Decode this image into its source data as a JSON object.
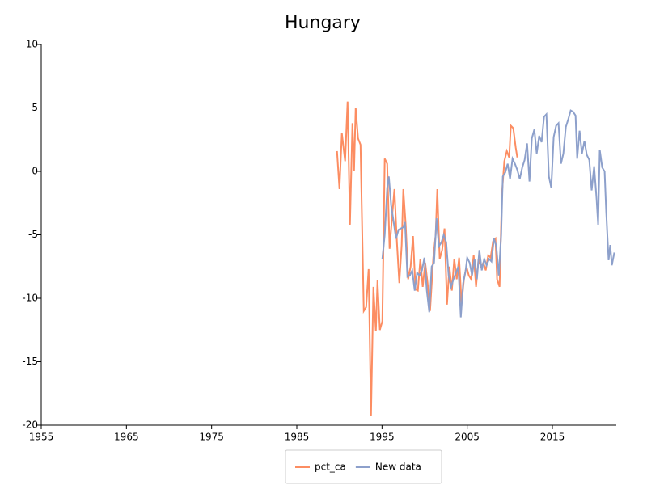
{
  "chart_data": {
    "type": "line",
    "title": "Hungary",
    "xlim": [
      1955,
      2022.5
    ],
    "xticks": [
      1955,
      1965,
      1975,
      1985,
      1995,
      2005,
      2015
    ],
    "ylim": [
      -20,
      10
    ],
    "yticks": [
      -20,
      -15,
      -10,
      -5,
      0,
      5,
      10
    ],
    "grid": false,
    "legend": "bottom",
    "series": [
      {
        "name": "pct_ca",
        "color": "#fc8d62",
        "x": [
          1989.72,
          1990.01,
          1990.29,
          1990.67,
          1990.96,
          1991.24,
          1991.53,
          1991.72,
          1991.91,
          1992.19,
          1992.48,
          1992.86,
          1993.14,
          1993.43,
          1993.71,
          1993.99,
          1994.28,
          1994.47,
          1994.75,
          1995.04,
          1995.32,
          1995.61,
          1995.89,
          1996.18,
          1996.46,
          1996.75,
          1997.03,
          1997.31,
          1997.5,
          1997.79,
          1998.07,
          1998.36,
          1998.64,
          1998.93,
          1999.21,
          1999.5,
          1999.78,
          2000.07,
          2000.35,
          2000.64,
          2001.02,
          2001.3,
          2001.49,
          2001.77,
          2002.06,
          2002.34,
          2002.63,
          2002.91,
          2003.2,
          2003.48,
          2003.77,
          2004.05,
          2004.34,
          2004.62,
          2004.91,
          2005.19,
          2005.47,
          2005.76,
          2006.04,
          2006.33,
          2006.61,
          2006.9,
          2007.18,
          2007.47,
          2007.75,
          2008.04,
          2008.32,
          2008.51,
          2008.8,
          2009.08,
          2009.36,
          2009.65,
          2009.93,
          2010.12,
          2010.41,
          2010.69,
          2010.88
        ],
        "values": [
          1.6,
          -1.4,
          3.0,
          0.8,
          5.5,
          -4.2,
          3.8,
          0,
          5.0,
          2.6,
          2.1,
          -11,
          -10.7,
          -7.7,
          -19.3,
          -9.1,
          -12.6,
          -8.6,
          -12.5,
          -11.8,
          1.0,
          0.6,
          -6.1,
          -3.6,
          -1.4,
          -5.6,
          -8.8,
          -5.8,
          -1.4,
          -4.3,
          -8.5,
          -7.5,
          -5.1,
          -9.3,
          -9.4,
          -6.9,
          -9.1,
          -7.2,
          -8.8,
          -11,
          -6.8,
          -5.0,
          -1.4,
          -6.9,
          -6.2,
          -4.5,
          -10.5,
          -7.5,
          -9.4,
          -6.9,
          -8.5,
          -6.8,
          -10.4,
          -8.5,
          -7.5,
          -8.2,
          -8.5,
          -6.6,
          -9.1,
          -6.9,
          -7.5,
          -7.2,
          -7.8,
          -6.6,
          -6.8,
          -5.5,
          -5.3,
          -8.5,
          -9.1,
          -1.8,
          0.8,
          1.6,
          1.1,
          3.6,
          3.4,
          1.9,
          1.1
        ]
      },
      {
        "name": "New data",
        "color": "#8da0cb",
        "x": [
          1995.04,
          1995.32,
          1995.61,
          1995.8,
          1996.08,
          1996.37,
          1996.65,
          1996.94,
          1997.22,
          1997.51,
          1997.7,
          1997.98,
          1998.27,
          1998.55,
          1998.84,
          1999.12,
          1999.41,
          1999.69,
          1999.98,
          2000.26,
          2000.55,
          2000.83,
          2001.11,
          2001.4,
          2001.68,
          2001.97,
          2002.25,
          2002.54,
          2002.82,
          2003.11,
          2003.39,
          2003.68,
          2003.96,
          2004.25,
          2004.53,
          2004.82,
          2005.0,
          2005.29,
          2005.57,
          2005.86,
          2006.14,
          2006.43,
          2006.71,
          2007.0,
          2007.28,
          2007.57,
          2007.85,
          2008.14,
          2008.42,
          2008.71,
          2008.99,
          2009.18,
          2009.46,
          2009.75,
          2010.03,
          2010.32,
          2010.6,
          2010.89,
          2011.17,
          2011.46,
          2011.74,
          2012.03,
          2012.31,
          2012.59,
          2012.88,
          2013.16,
          2013.45,
          2013.73,
          2014.02,
          2014.3,
          2014.59,
          2014.87,
          2015.15,
          2015.44,
          2015.72,
          2016.01,
          2016.29,
          2016.58,
          2016.86,
          2017.15,
          2017.43,
          2017.72,
          2017.91,
          2018.19,
          2018.47,
          2018.76,
          2019.04,
          2019.33,
          2019.61,
          2019.9,
          2020.18,
          2020.37,
          2020.56,
          2020.85,
          2021.13,
          2021.32,
          2021.6,
          2021.79,
          2021.98,
          2022.27
        ],
        "values": [
          -6.9,
          -5.0,
          -1.3,
          -0.4,
          -2.7,
          -4.0,
          -5.3,
          -4.6,
          -4.5,
          -4.4,
          -4.0,
          -8.3,
          -8.2,
          -7.8,
          -9.4,
          -8.0,
          -8.2,
          -7.8,
          -6.8,
          -9.4,
          -11.1,
          -7.5,
          -7.2,
          -3.7,
          -5.9,
          -5.6,
          -5.0,
          -5.6,
          -8.2,
          -9.1,
          -8.5,
          -8.0,
          -7.5,
          -11.5,
          -8.8,
          -7.8,
          -6.8,
          -7.2,
          -8.2,
          -6.9,
          -8.5,
          -6.2,
          -7.8,
          -6.9,
          -7.4,
          -6.9,
          -7.1,
          -5.3,
          -5.9,
          -8.2,
          -5.0,
          -0.4,
          -0.1,
          0.6,
          -0.6,
          1.0,
          0.6,
          0.1,
          -0.6,
          0.3,
          0.9,
          2.2,
          -0.8,
          2.6,
          3.3,
          1.4,
          2.8,
          2.3,
          4.3,
          4.5,
          -0.4,
          -1.3,
          2.7,
          3.6,
          3.8,
          0.6,
          1.4,
          3.5,
          4.1,
          4.8,
          4.7,
          4.4,
          1.0,
          3.2,
          1.4,
          2.4,
          1.3,
          0.9,
          -1.5,
          0.4,
          -2.1,
          -4.2,
          1.7,
          0.3,
          0.0,
          -3.2,
          -7.0,
          -5.8,
          -7.4,
          -6.4
        ]
      }
    ]
  }
}
